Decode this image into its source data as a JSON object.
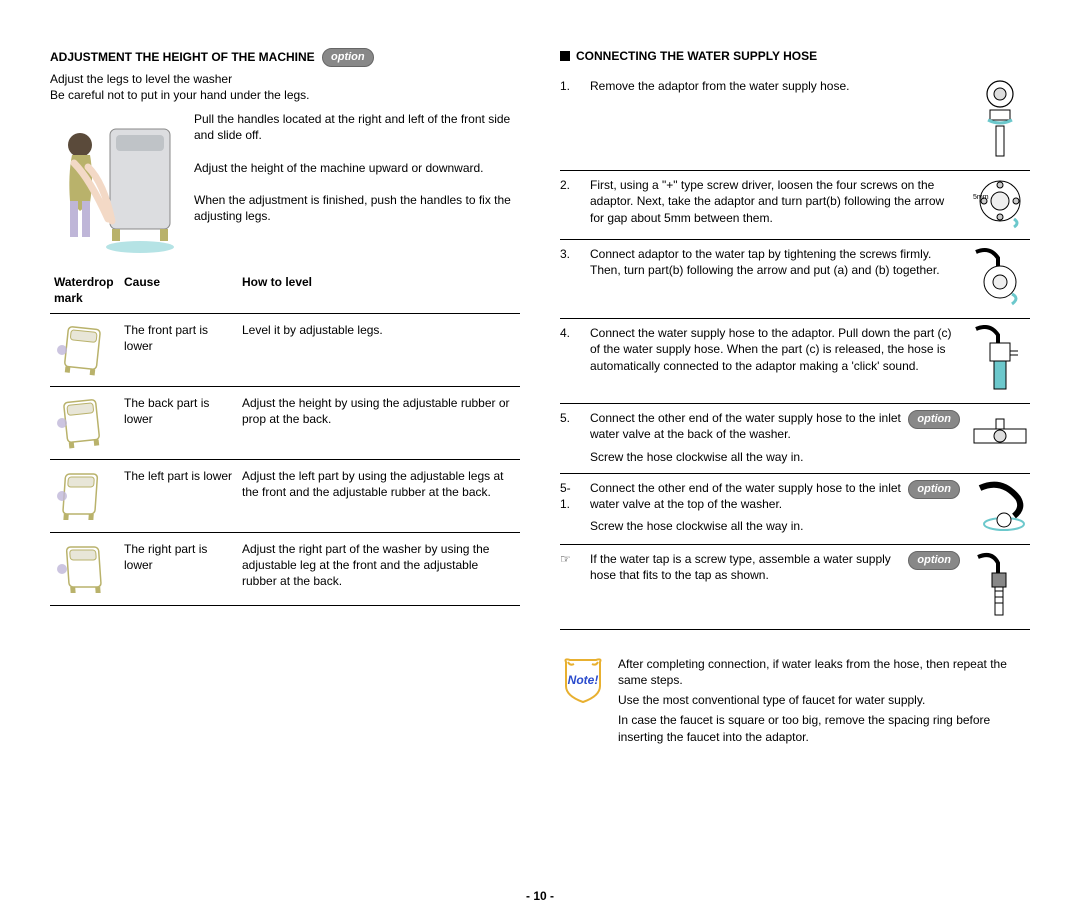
{
  "left": {
    "heading": "ADJUSTMENT THE HEIGHT OF THE MACHINE",
    "option_label": "option",
    "intro1": "Adjust the legs to level the washer",
    "intro2": "Be careful not to put in your hand under the legs.",
    "hero_p1": "Pull the handles located at the right and left of the front side and slide off.",
    "hero_p2": "Adjust the height of the machine upward or downward.",
    "hero_p3": "When the adjustment is finished, push the handles to fix the adjusting legs.",
    "table": {
      "headers": [
        "Waterdrop mark",
        "Cause",
        "How to level"
      ],
      "rows": [
        {
          "cause": "The front part is lower",
          "how": "Level it by adjustable legs."
        },
        {
          "cause": "The back part is lower",
          "how": "Adjust the height by using the adjustable rubber or prop at the back."
        },
        {
          "cause": "The left part is lower",
          "how": "Adjust the left part by using the adjustable legs at the front and the adjustable rubber at the back."
        },
        {
          "cause": "The right part is lower",
          "how": "Adjust the right part of the washer by using the adjustable leg at the front and the adjustable rubber at the back."
        }
      ]
    }
  },
  "right": {
    "heading": "CONNECTING THE WATER SUPPLY HOSE",
    "steps": [
      {
        "num": "1.",
        "text": "Remove the adaptor from the water supply hose."
      },
      {
        "num": "2.",
        "text": "First, using a \"+\" type screw driver, loosen the four screws on the adaptor. Next, take the adaptor and turn part(b) following the arrow for gap about 5mm between them."
      },
      {
        "num": "3.",
        "text": "Connect adaptor to the water tap by tightening the screws firmly. Then, turn part(b) following the arrow and put (a) and (b) together."
      },
      {
        "num": "4.",
        "text": "Connect the water supply hose to the adaptor. Pull down the part (c) of the water supply hose. When the part (c) is released, the hose is automatically connected to the adaptor making a 'click' sound."
      },
      {
        "num": "5.",
        "text": "Connect the other end of the water supply hose to the inlet water valve at the back of the washer.",
        "extra": "Screw the hose clockwise all the way in.",
        "option": true
      },
      {
        "num": "5-1.",
        "text": "Connect the other end of the water supply hose to the inlet water valve at the top of the washer.",
        "extra": "Screw the hose clockwise all the way in.",
        "option": true
      },
      {
        "num": "☞",
        "text": "If the water tap is a screw type, assemble a water supply hose that fits to the tap as shown.",
        "option": true
      }
    ],
    "note": {
      "label": "Note!",
      "p1": "After completing connection, if water leaks from the hose, then repeat the same steps.",
      "p2": "Use the most conventional type of faucet for water supply.",
      "p3": "In case the faucet is square or too big, remove the spacing ring before inserting the faucet into the adaptor."
    }
  },
  "option_label": "option",
  "page_number": "- 10 -",
  "colors": {
    "text": "#000000",
    "badge_bg": "#888888",
    "accent_teal": "#6cc8cc",
    "accent_olive": "#b9b26b",
    "accent_lav": "#bfb6d8",
    "skin": "#f3d9c6"
  }
}
